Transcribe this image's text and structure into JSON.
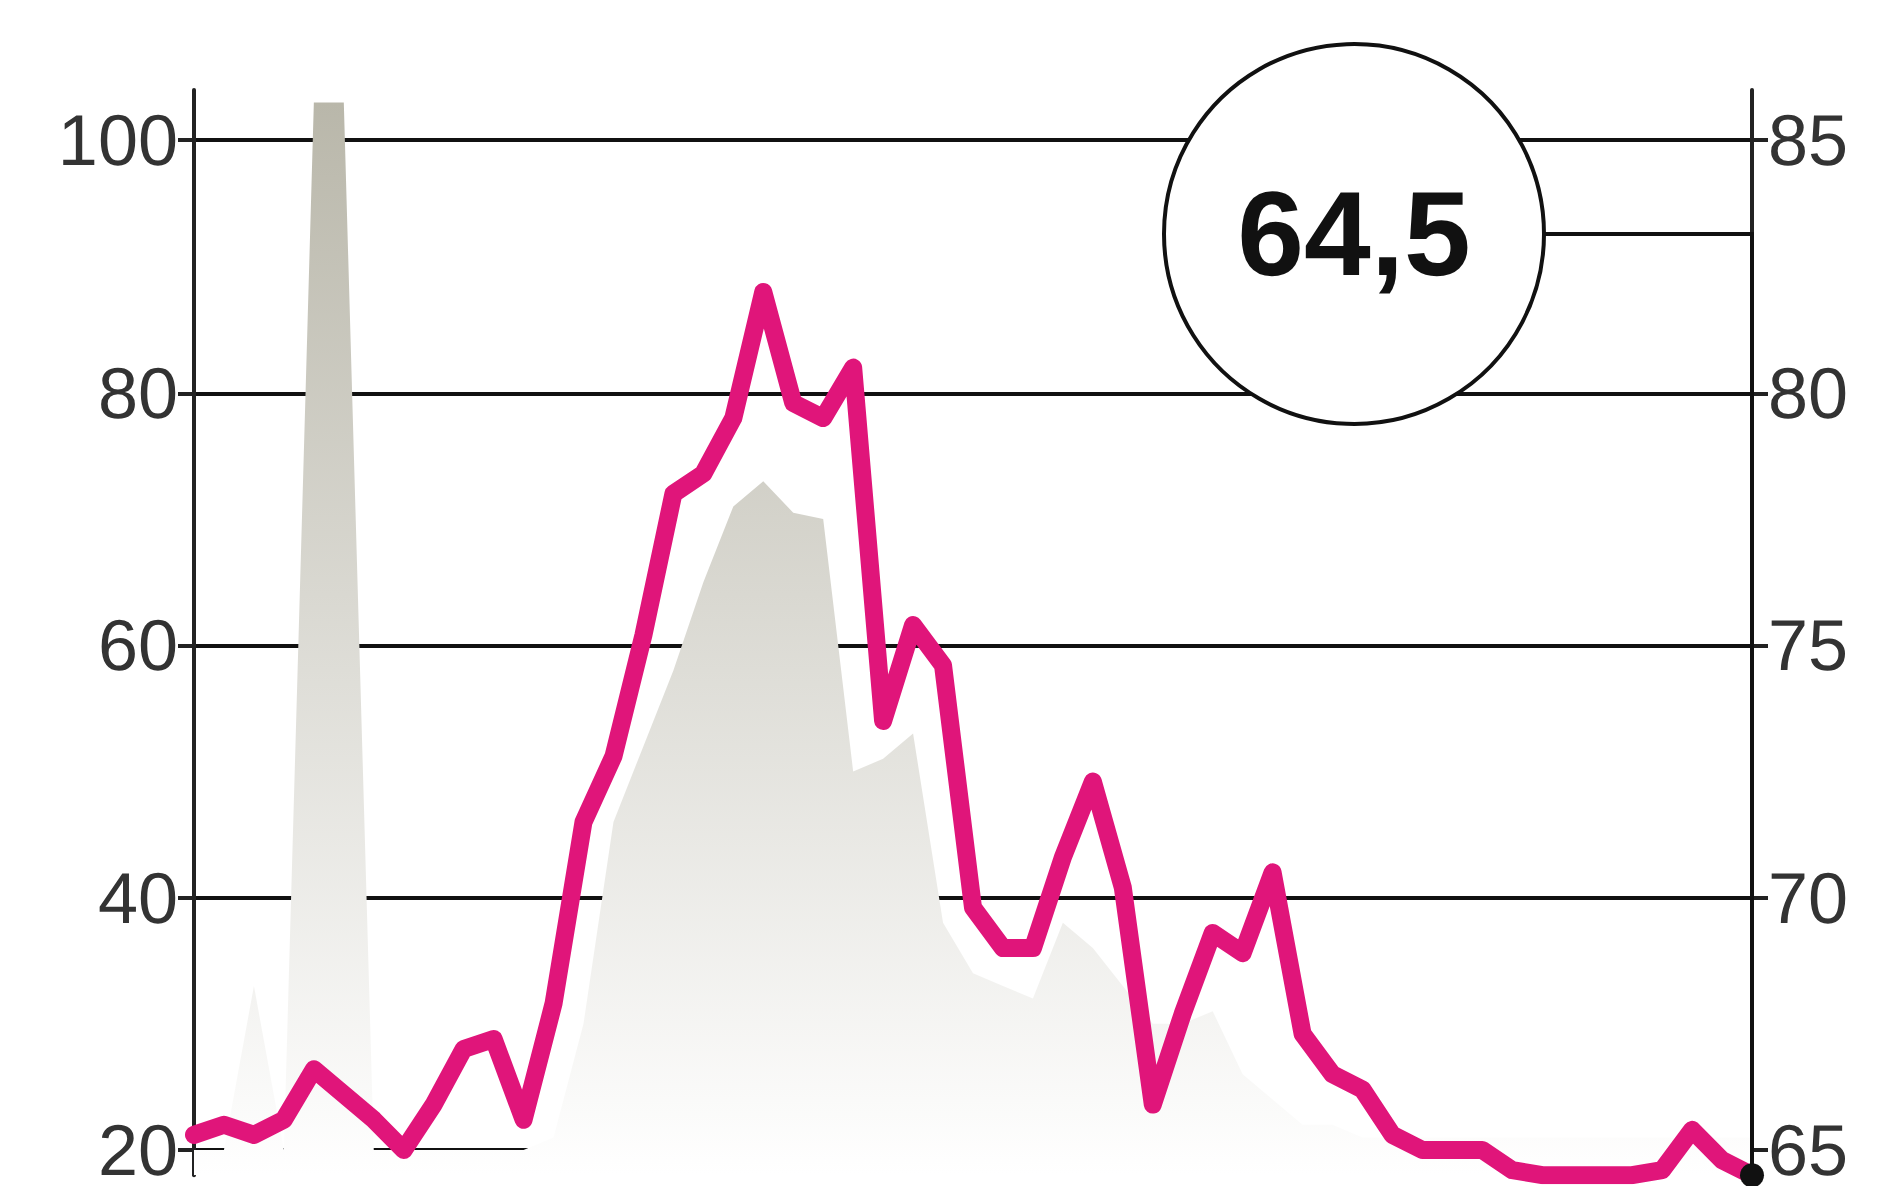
{
  "chart_data": {
    "type": "line",
    "categories": [
      null,
      null,
      null,
      null,
      null,
      null,
      null,
      null,
      null,
      null,
      null,
      null,
      null,
      null,
      null,
      null,
      null,
      null,
      null,
      null,
      null,
      null,
      null,
      null,
      null,
      null,
      null,
      null,
      null,
      null,
      null,
      null,
      null,
      null,
      null,
      null,
      null,
      null,
      null,
      null,
      null,
      null,
      null,
      null,
      null,
      null,
      null,
      null,
      null,
      null,
      null,
      null,
      null
    ],
    "series": [
      {
        "type": "area",
        "color": "#b9b7aa",
        "values": [
          20,
          20,
          33,
          20,
          103,
          103,
          20,
          20,
          20,
          20,
          20,
          20,
          21,
          30,
          46,
          52,
          58,
          65,
          71,
          73,
          70.5,
          70,
          50,
          51,
          53,
          38,
          34,
          33,
          32,
          38,
          36,
          33,
          30,
          30,
          31,
          26,
          24,
          22,
          22,
          21,
          21,
          21,
          21,
          21,
          21,
          21,
          21,
          21,
          21,
          21,
          21,
          21,
          21
        ]
      },
      {
        "axis": "y2",
        "color": "#e0157a",
        "values": [
          65.3,
          65.5,
          65.3,
          65.6,
          66.6,
          66.1,
          65.6,
          65.0,
          65.9,
          67.0,
          67.2,
          65.6,
          67.9,
          71.5,
          72.8,
          75.2,
          78.0,
          78.4,
          79.5,
          82.0,
          79.8,
          79.5,
          80.5,
          73.5,
          75.4,
          74.6,
          69.8,
          69.0,
          69.0,
          70.8,
          72.3,
          70.2,
          65.9,
          67.7,
          69.3,
          68.9,
          70.5,
          67.3,
          66.5,
          66.2,
          65.3,
          65.0,
          65.0,
          65.0,
          64.6,
          64.5,
          64.5,
          64.5,
          64.5,
          64.6,
          65.4,
          64.8,
          64.5
        ]
      }
    ],
    "ylim": [
      18,
      104
    ],
    "yticks": [
      20,
      40,
      60,
      80,
      100
    ],
    "y2lim": [
      64.5,
      86
    ],
    "y2ticks": [
      65,
      70,
      75,
      80,
      85
    ],
    "grid": "y",
    "annotations": [
      "64,5"
    ]
  }
}
